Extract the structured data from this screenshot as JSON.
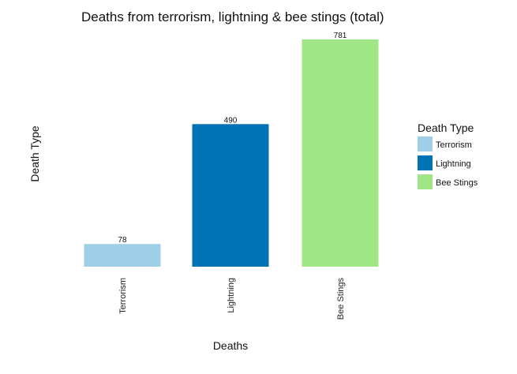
{
  "chart_data": {
    "type": "bar",
    "title": "Deaths from terrorism, lightning & bee stings (total)",
    "xlabel": "Deaths",
    "ylabel": "Death Type",
    "categories": [
      "Terrorism",
      "Lightning",
      "Bee Stings"
    ],
    "values": [
      78,
      490,
      781
    ],
    "colors": [
      "#9ecfe6",
      "#0073b7",
      "#9ee686"
    ],
    "ylim": [
      0,
      781
    ],
    "grid": false,
    "legend": {
      "title": "Death Type",
      "placement": "right",
      "entries": [
        "Terrorism",
        "Lightning",
        "Bee Stings"
      ]
    }
  }
}
